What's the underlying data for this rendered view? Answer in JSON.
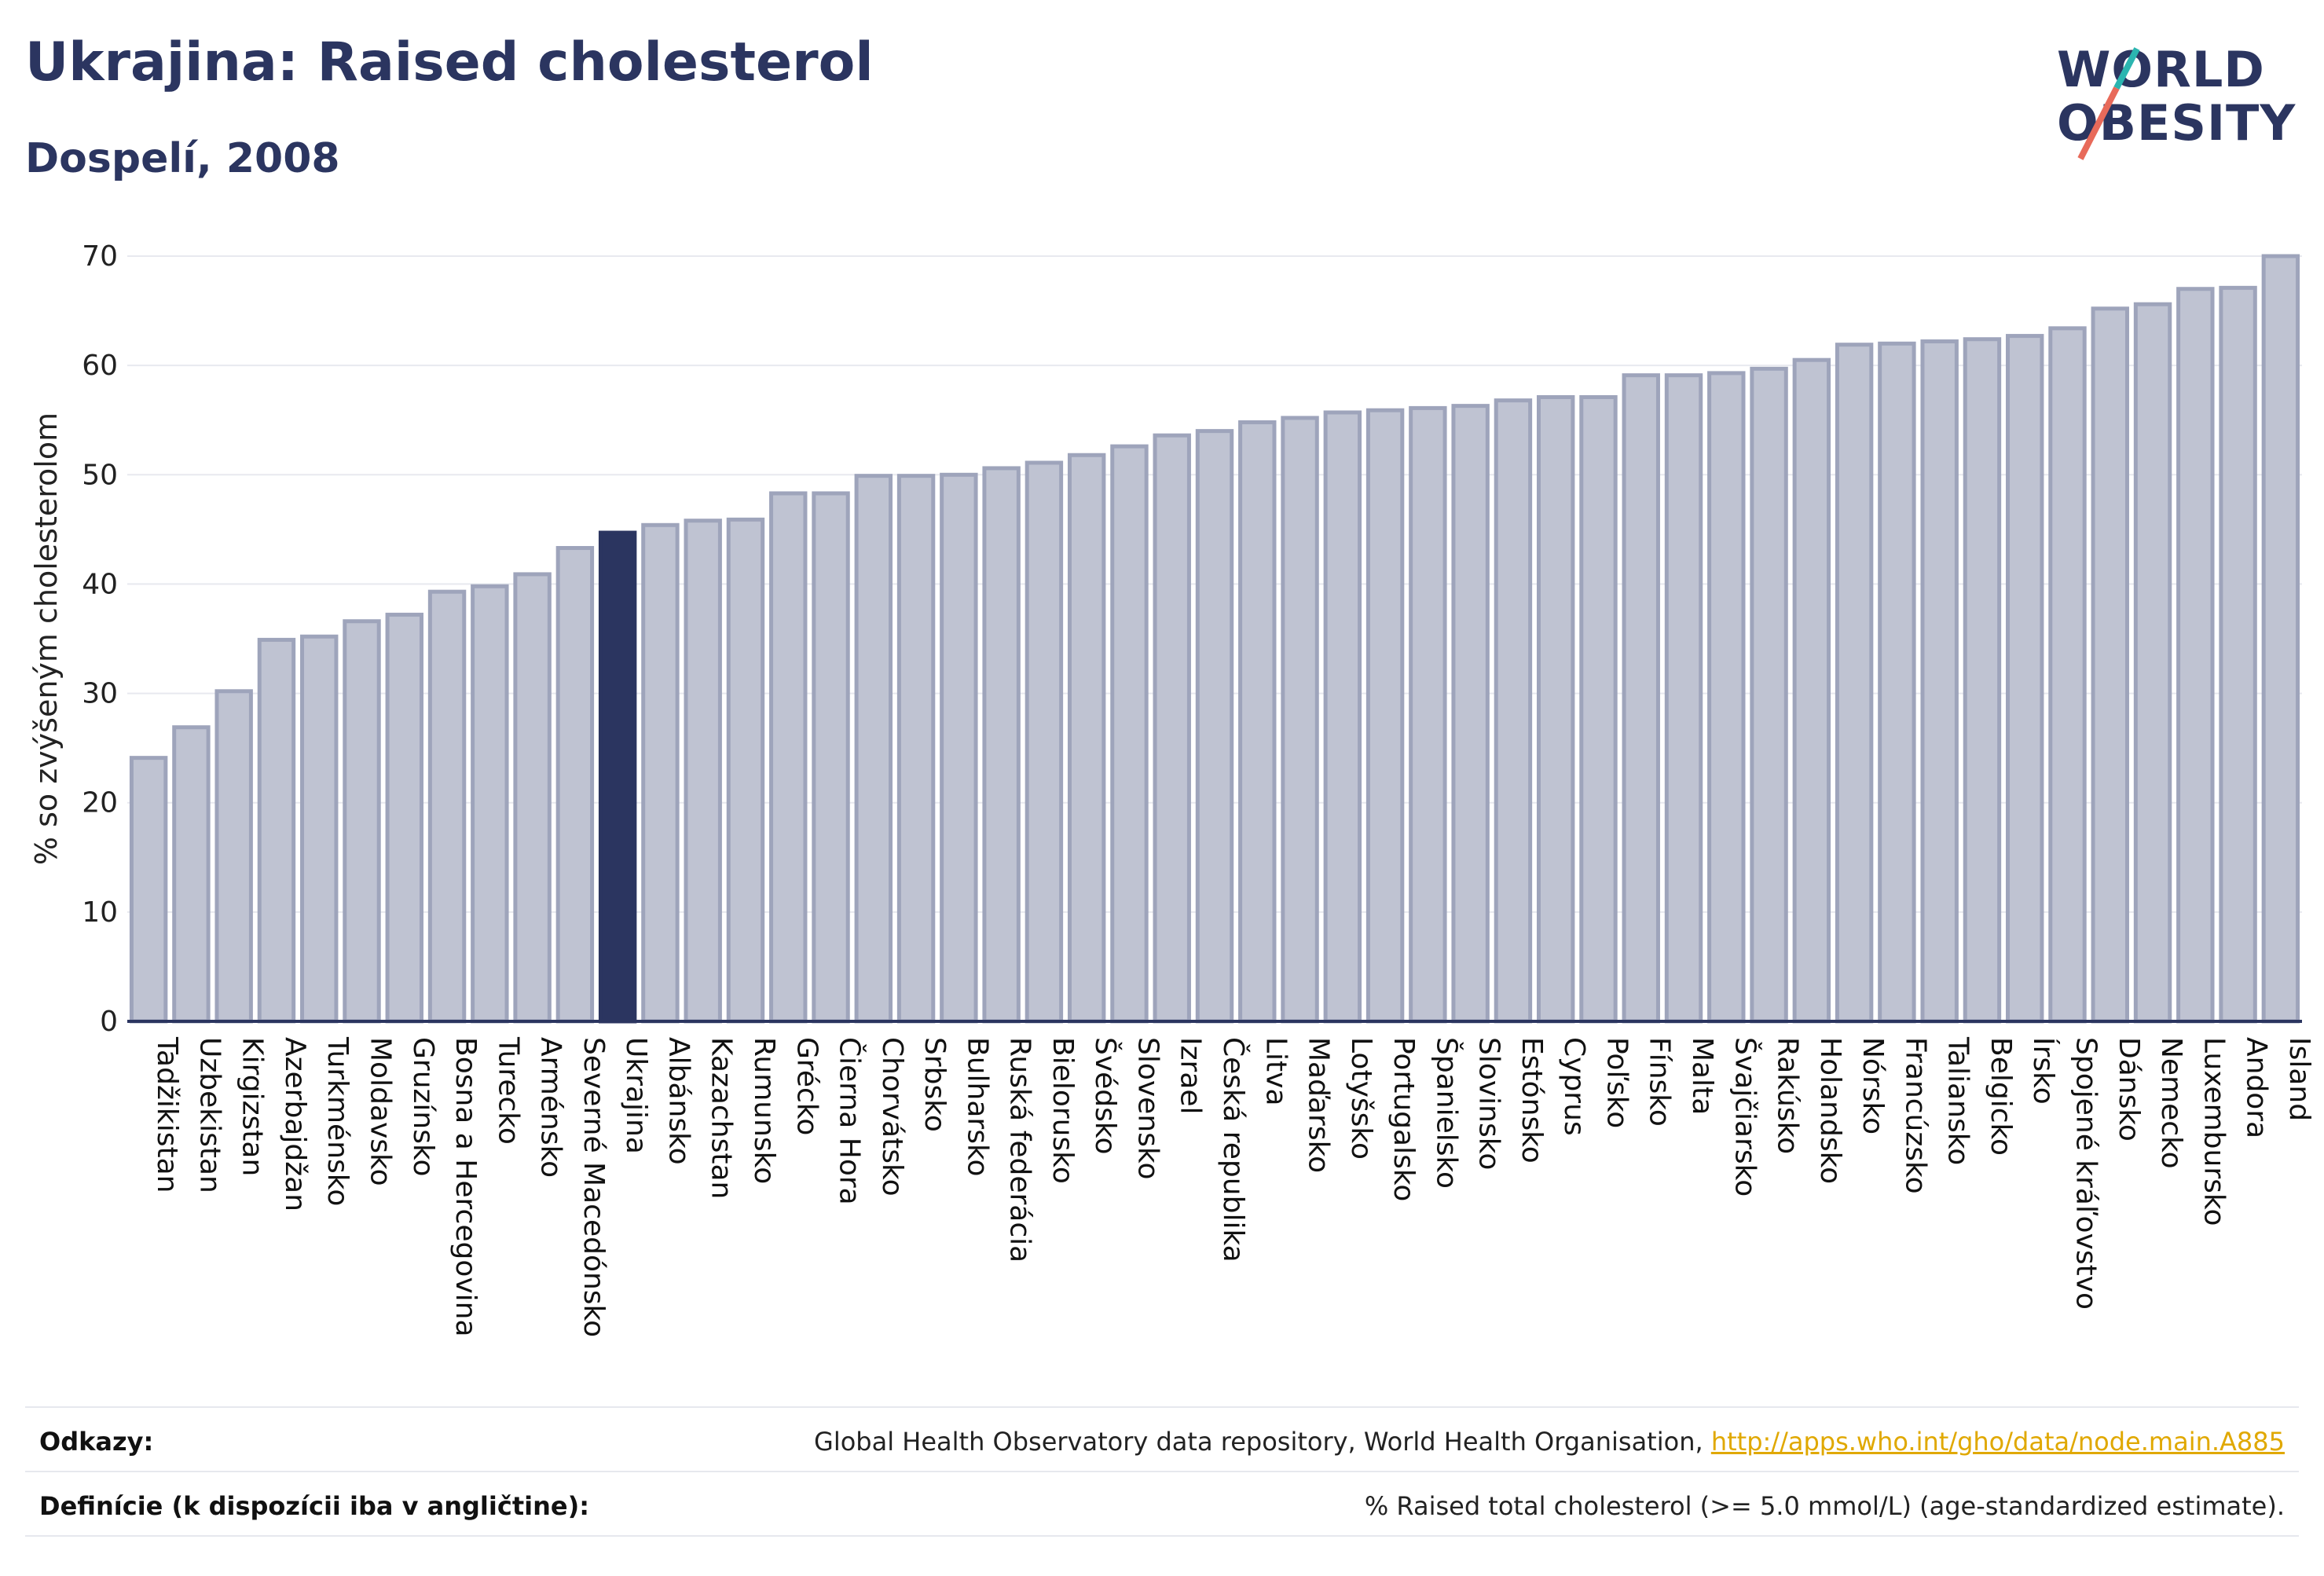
{
  "title": "Ukrajina: Raised cholesterol",
  "subtitle": "Dospelí, 2008",
  "logo": {
    "line1": "WORLD",
    "line2": "OBESITY"
  },
  "colors": {
    "bar": "#bfc3d2",
    "bar_border": "#9ea4bb",
    "highlight": "#2b3560",
    "text": "#2b3560",
    "link": "#e0a800"
  },
  "chart_data": {
    "type": "bar",
    "ylabel": "% so zvýšeným cholesterolom",
    "xlabel": "",
    "ylim": [
      0,
      70
    ],
    "yticks": [
      0,
      10,
      20,
      30,
      40,
      50,
      60,
      70
    ],
    "grid": true,
    "highlight": "Ukrajina",
    "categories": [
      "Tadžikistan",
      "Uzbekistan",
      "Kirgizstan",
      "Azerbajdžan",
      "Turkménsko",
      "Moldavsko",
      "Gruzínsko",
      "Bosna a Hercegovina",
      "Turecko",
      "Arménsko",
      "Severné Macedónsko",
      "Ukrajina",
      "Albánsko",
      "Kazachstan",
      "Rumunsko",
      "Grécko",
      "Čierna Hora",
      "Chorvátsko",
      "Srbsko",
      "Bulharsko",
      "Ruská federácia",
      "Bielorusko",
      "Švédsko",
      "Slovensko",
      "Izrael",
      "Česká republika",
      "Litva",
      "Maďarsko",
      "Lotyšsko",
      "Portugalsko",
      "Španielsko",
      "Slovinsko",
      "Estónsko",
      "Cyprus",
      "Poľsko",
      "Fínsko",
      "Malta",
      "Švajčiarsko",
      "Rakúsko",
      "Holandsko",
      "Nórsko",
      "Francúzsko",
      "Taliansko",
      "Belgicko",
      "Írsko",
      "Spojené kráľovstvo",
      "Dánsko",
      "Nemecko",
      "Luxembursko",
      "Andora",
      "Island"
    ],
    "values": [
      24.1,
      26.9,
      30.2,
      34.9,
      35.2,
      36.6,
      37.2,
      39.3,
      39.8,
      40.9,
      43.3,
      44.7,
      45.4,
      45.8,
      45.9,
      48.3,
      48.3,
      49.9,
      49.9,
      50.0,
      50.6,
      51.1,
      51.8,
      52.6,
      53.6,
      54.0,
      54.8,
      55.2,
      55.7,
      55.9,
      56.1,
      56.3,
      56.8,
      57.1,
      57.1,
      59.1,
      59.1,
      59.3,
      59.7,
      60.5,
      61.9,
      62.0,
      62.2,
      62.4,
      62.7,
      63.4,
      65.2,
      65.6,
      67.0,
      67.1,
      70.0
    ]
  },
  "footer": {
    "sources_label": "Odkazy:",
    "sources_text": "Global Health Observatory data repository, World Health Organisation, ",
    "sources_link": "http://apps.who.int/gho/data/node.main.A885",
    "definitions_label": "Definície (k dispozícii iba v angličtine):",
    "definitions_text": "% Raised total cholesterol (>= 5.0 mmol/L) (age-standardized estimate)."
  }
}
